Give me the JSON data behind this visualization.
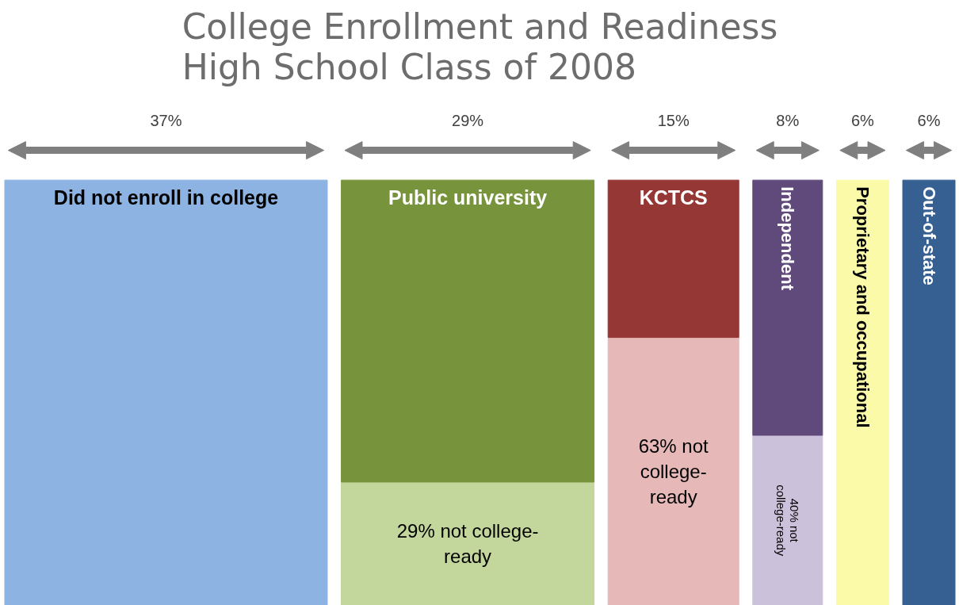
{
  "chart_data": {
    "type": "other",
    "title": "College Enrollment and Readiness\nHigh School Class of 2008",
    "categories": [
      "Did not enroll in college",
      "Public university",
      "KCTCS",
      "Independent",
      "Proprietary and occupational",
      "Out-of-state"
    ],
    "values": [
      37,
      29,
      15,
      8,
      6,
      6
    ],
    "value_labels": [
      "37%",
      "29%",
      "15%",
      "8%",
      "6%",
      "6%"
    ],
    "colors": [
      "#8db3e2",
      "#77933c",
      "#953735",
      "#604a7b",
      "#fafaa8",
      "#366092"
    ],
    "series": [
      {
        "values": [
          null,
          29,
          63,
          40,
          null,
          null
        ],
        "colors": [
          "#8db3e2",
          "#c3d69b",
          "#e6b9b8",
          "#ccc1da",
          "#fafaa8",
          "#366092"
        ],
        "value_labels": [
          null,
          "29% not college-ready",
          "63% not college-ready",
          "40% not college-ready",
          null,
          null
        ]
      }
    ]
  }
}
